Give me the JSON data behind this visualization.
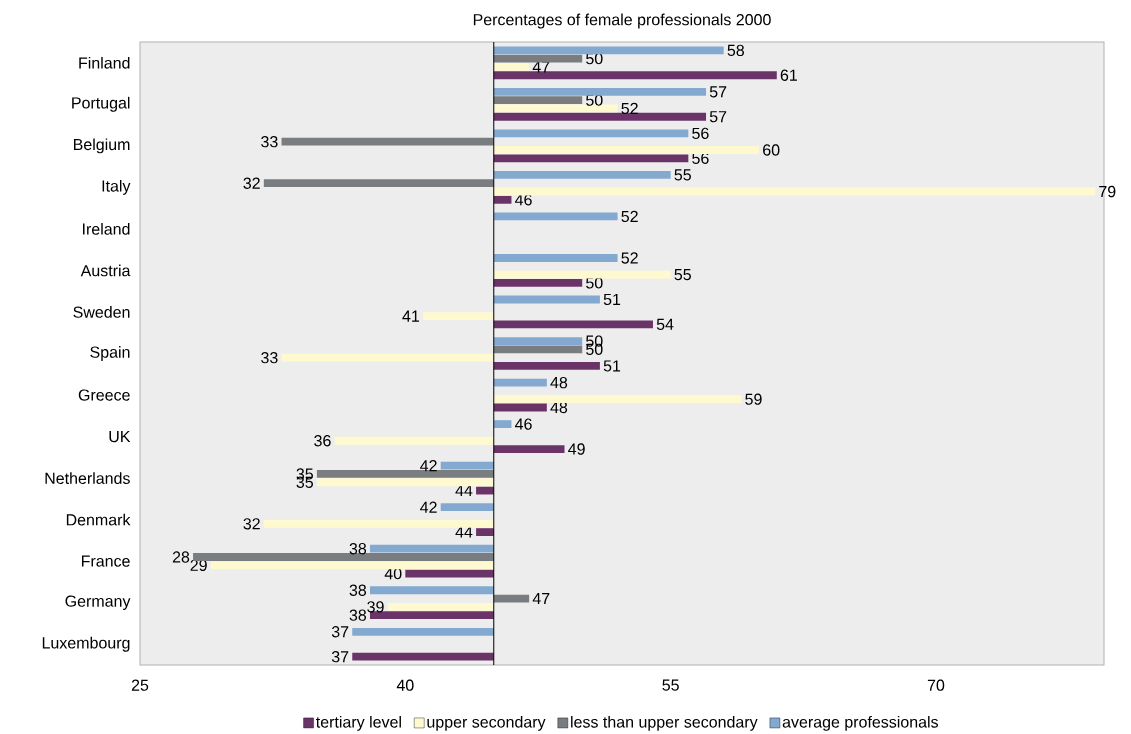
{
  "chart_data": {
    "type": "bar",
    "orientation": "horizontal",
    "title": "Percentages of female professionals 2000",
    "categories": [
      "Finland",
      "Portugal",
      "Belgium",
      "Italy",
      "Ireland",
      "Austria",
      "Sweden",
      "Spain",
      "Greece",
      "UK",
      "Netherlands",
      "Denmark",
      "France",
      "Germany",
      "Luxembourg"
    ],
    "series": [
      {
        "name": "tertiary level",
        "color": "#6b3468",
        "base": [
          45,
          45,
          45,
          45,
          null,
          45,
          45,
          45,
          45,
          45,
          45,
          45,
          45,
          45,
          45
        ],
        "values": [
          16,
          12,
          11,
          1,
          null,
          5,
          9,
          6,
          3,
          4,
          -1,
          -1,
          -5,
          -7,
          -8
        ],
        "value_labels": [
          "61",
          "57",
          "56",
          "46",
          null,
          "50",
          "54",
          "51",
          "48",
          "49",
          "44",
          "44",
          "40",
          "38",
          "37"
        ]
      },
      {
        "name": "upper secondary",
        "color": "#fff9d0",
        "base": [
          45,
          45,
          45,
          45,
          null,
          45,
          45,
          45,
          45,
          45,
          45,
          45,
          45,
          45,
          null
        ],
        "values": [
          2,
          7,
          15,
          34,
          null,
          10,
          -4,
          -12,
          14,
          -9,
          -10,
          -13,
          -16,
          -6,
          null
        ],
        "value_labels": [
          "47",
          "52",
          "60",
          "79",
          null,
          "55",
          "41",
          "33",
          "59",
          "36",
          "35",
          "32",
          "29",
          "39",
          null
        ]
      },
      {
        "name": "less than upper secondary",
        "color": "#797d80",
        "base": [
          45,
          45,
          45,
          45,
          null,
          null,
          null,
          45,
          null,
          null,
          45,
          null,
          45,
          45,
          null
        ],
        "values": [
          5,
          5,
          -12,
          -13,
          null,
          null,
          null,
          5,
          null,
          null,
          -10,
          null,
          -17,
          2,
          null
        ],
        "value_labels": [
          "50",
          "50",
          "33",
          "32",
          null,
          null,
          null,
          "50",
          null,
          null,
          "35",
          null,
          "28",
          "47",
          null
        ]
      },
      {
        "name": "average professionals",
        "color": "#84a9d0",
        "base": [
          45,
          45,
          45,
          45,
          45,
          45,
          45,
          45,
          45,
          45,
          45,
          45,
          45,
          45,
          45
        ],
        "values": [
          13,
          12,
          11,
          10,
          7,
          7,
          6,
          5,
          3,
          1,
          -3,
          -3,
          -7,
          -7,
          -8
        ],
        "value_labels": [
          "58",
          "57",
          "56",
          "55",
          "52",
          "52",
          "51",
          "50",
          "48",
          "46",
          "42",
          "42",
          "38",
          "38",
          "37"
        ]
      }
    ],
    "ref_lines": [
      {
        "axis": "x",
        "value": 45,
        "color": "#000000"
      }
    ],
    "xlim": [
      25,
      79.5
    ],
    "xticks": [
      25,
      40,
      55,
      70
    ],
    "legend": "bottom"
  }
}
